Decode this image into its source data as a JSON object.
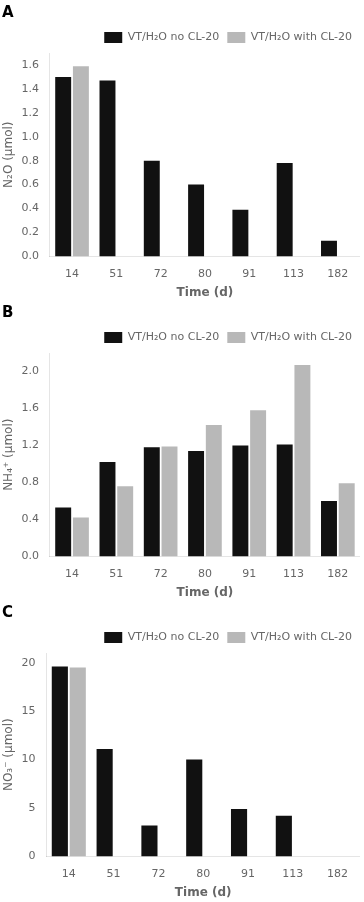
{
  "chart_data": [
    {
      "type": "bar",
      "title": "A",
      "x_label": "Time (d)",
      "y_label": "N₂O (μmol)",
      "categories": [
        "14",
        "51",
        "72",
        "80",
        "91",
        "113",
        "182"
      ],
      "series": [
        {
          "name": "VT/H₂O no CL-20",
          "color": "#111111",
          "values": [
            1.5,
            1.47,
            0.8,
            0.6,
            0.39,
            0.78,
            0.13
          ]
        },
        {
          "name": "VT/H₂O with CL-20",
          "color": "#b8b8b8",
          "values": [
            1.59,
            null,
            null,
            null,
            null,
            null,
            null
          ]
        }
      ],
      "ylim": [
        0,
        1.7
      ],
      "yticks": [
        {
          "value": 0.0,
          "label": "0.0"
        },
        0.2,
        0.4,
        0.6,
        0.8,
        {
          "value": 1.0,
          "label": "1.0"
        },
        1.2,
        1.4,
        1.6
      ],
      "grid": false,
      "legend": "upper right"
    },
    {
      "type": "bar",
      "title": "B",
      "x_label": "Time (d)",
      "y_label": "NH₄⁺ (μmol)",
      "categories": [
        "14",
        "51",
        "72",
        "80",
        "91",
        "113",
        "182"
      ],
      "series": [
        {
          "name": "VT/H₂O no CL-20",
          "color": "#111111",
          "values": [
            0.53,
            1.02,
            1.18,
            1.14,
            1.2,
            1.21,
            0.6
          ]
        },
        {
          "name": "VT/H₂O with CL-20",
          "color": "#b8b8b8",
          "values": [
            0.42,
            0.76,
            1.19,
            1.42,
            1.58,
            2.07,
            0.79
          ]
        }
      ],
      "ylim": [
        0,
        2.2
      ],
      "yticks": [
        {
          "value": 0.0,
          "label": "0.0"
        },
        0.4,
        0.8,
        1.2,
        1.6,
        {
          "value": 2.0,
          "label": "2.0"
        }
      ],
      "grid": false,
      "legend": "upper right"
    },
    {
      "type": "bar",
      "title": "C",
      "x_label": "Time (d)",
      "y_label": "NO₃⁻ (μmol)",
      "categories": [
        "14",
        "51",
        "72",
        "80",
        "91",
        "113",
        "182"
      ],
      "series": [
        {
          "name": "VT/H₂O no CL-20",
          "color": "#111111",
          "values": [
            19.6,
            11.1,
            3.2,
            10.0,
            4.9,
            4.2,
            null
          ]
        },
        {
          "name": "VT/H₂O with CL-20",
          "color": "#b8b8b8",
          "values": [
            19.5,
            null,
            null,
            null,
            null,
            null,
            null
          ]
        }
      ],
      "ylim": [
        0,
        21
      ],
      "yticks": [
        0,
        5,
        10,
        15,
        20
      ],
      "grid": false,
      "legend": "upper right"
    }
  ]
}
